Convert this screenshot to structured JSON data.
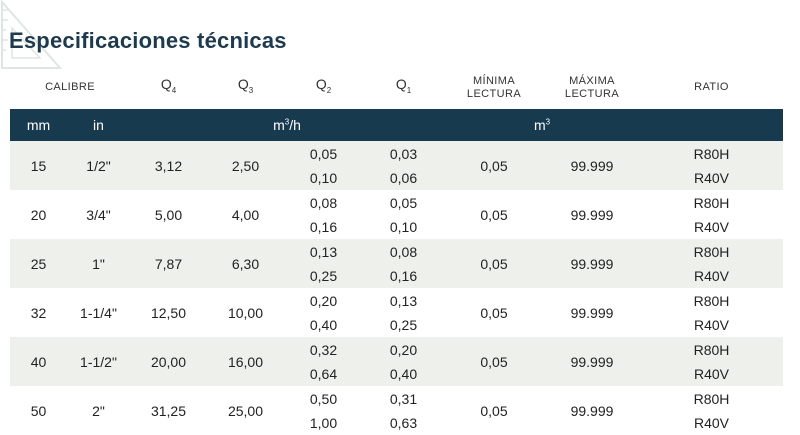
{
  "title": "Especificaciones técnicas",
  "columns": {
    "calibre": "CALIBRE",
    "q4": {
      "base": "Q",
      "sub": "4"
    },
    "q3": {
      "base": "Q",
      "sub": "3"
    },
    "q2": {
      "base": "Q",
      "sub": "2"
    },
    "q1": {
      "base": "Q",
      "sub": "1"
    },
    "minima": {
      "l1": "MÍNIMA",
      "l2": "LECTURA"
    },
    "maxima": {
      "l1": "MÁXIMA",
      "l2": "LECTURA"
    },
    "ratio": "RATIO"
  },
  "units": {
    "mm": "mm",
    "in": "in",
    "flow": {
      "base": "m",
      "sup": "3",
      "rest": "/h"
    },
    "volume": {
      "base": "m",
      "sup": "3"
    }
  },
  "rows": [
    {
      "mm": "15",
      "in": "1/2\"",
      "q4": "3,12",
      "q3": "2,50",
      "q2": [
        "0,05",
        "0,10"
      ],
      "q1": [
        "0,03",
        "0,06"
      ],
      "minima": "0,05",
      "maxima": "99.999",
      "ratio": [
        "R80H",
        "R40V"
      ]
    },
    {
      "mm": "20",
      "in": "3/4\"",
      "q4": "5,00",
      "q3": "4,00",
      "q2": [
        "0,08",
        "0,16"
      ],
      "q1": [
        "0,05",
        "0,10"
      ],
      "minima": "0,05",
      "maxima": "99.999",
      "ratio": [
        "R80H",
        "R40V"
      ]
    },
    {
      "mm": "25",
      "in": "1\"",
      "q4": "7,87",
      "q3": "6,30",
      "q2": [
        "0,13",
        "0,25"
      ],
      "q1": [
        "0,08",
        "0,16"
      ],
      "minima": "0,05",
      "maxima": "99.999",
      "ratio": [
        "R80H",
        "R40V"
      ]
    },
    {
      "mm": "32",
      "in": "1-1/4\"",
      "q4": "12,50",
      "q3": "10,00",
      "q2": [
        "0,20",
        "0,40"
      ],
      "q1": [
        "0,13",
        "0,25"
      ],
      "minima": "0,05",
      "maxima": "99.999",
      "ratio": [
        "R80H",
        "R40V"
      ]
    },
    {
      "mm": "40",
      "in": "1-1/2\"",
      "q4": "20,00",
      "q3": "16,00",
      "q2": [
        "0,32",
        "0,64"
      ],
      "q1": [
        "0,20",
        "0,40"
      ],
      "minima": "0,05",
      "maxima": "99.999",
      "ratio": [
        "R80H",
        "R40V"
      ]
    },
    {
      "mm": "50",
      "in": "2\"",
      "q4": "31,25",
      "q3": "25,00",
      "q2": [
        "0,50",
        "1,00"
      ],
      "q1": [
        "0,31",
        "0,63"
      ],
      "minima": "0,05",
      "maxima": "99.999",
      "ratio": [
        "R80H",
        "R40V"
      ]
    }
  ],
  "colors": {
    "title": "#1d3a4e",
    "header_band": "#173a4f",
    "row_band": "#eef0eb",
    "decoration": "#dfe6e2"
  },
  "icons": {
    "decoration": "set-square-ruler-icon"
  }
}
